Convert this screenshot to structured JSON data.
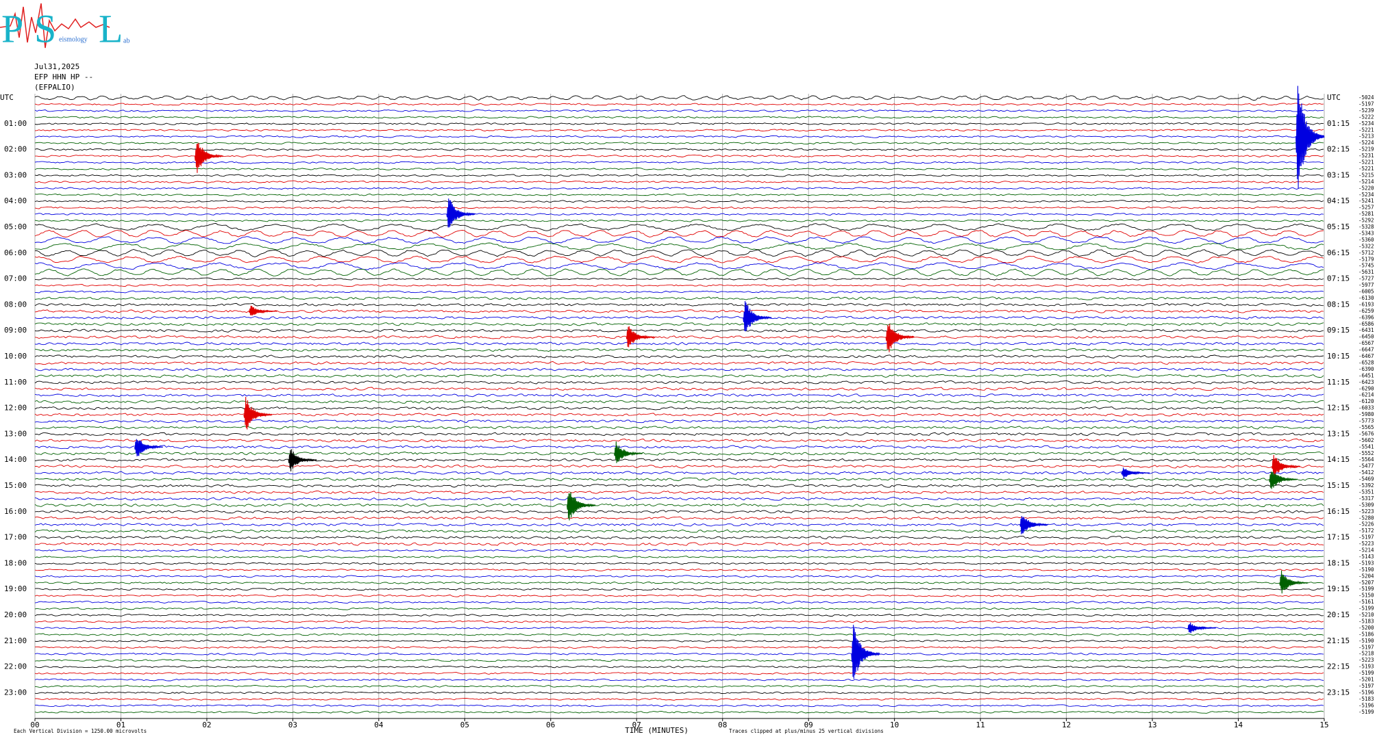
{
  "header": {
    "logo": [
      "P",
      "S",
      "eismology",
      "L",
      "ab"
    ],
    "date": "Jul31,2025",
    "station": "EFP HHN HP --",
    "site": "(EFPALIO)"
  },
  "chart_data": {
    "type": "helicorder",
    "left_labels": [
      "UTC",
      "01:00",
      "02:00",
      "03:00",
      "04:00",
      "05:00",
      "06:00",
      "07:00",
      "08:00",
      "09:00",
      "10:00",
      "11:00",
      "12:00",
      "13:00",
      "14:00",
      "15:00",
      "16:00",
      "17:00",
      "18:00",
      "19:00",
      "20:00",
      "21:00",
      "22:00",
      "23:00"
    ],
    "right_labels": [
      "UTC",
      "01:15",
      "02:15",
      "03:15",
      "04:15",
      "05:15",
      "06:15",
      "07:15",
      "08:15",
      "09:15",
      "10:15",
      "11:15",
      "12:15",
      "13:15",
      "14:15",
      "15:15",
      "16:15",
      "17:15",
      "18:15",
      "19:15",
      "20:15",
      "21:15",
      "22:15",
      "23:15"
    ],
    "trace_labels": [
      "-5024",
      "-5197",
      "-5239",
      "-5222",
      "-5234",
      "-5221",
      "-5213",
      "-5224",
      "-5219",
      "-5231",
      "-5221",
      "-5221",
      "-5215",
      "-5214",
      "-5220",
      "-5234",
      "-5241",
      "-5257",
      "-5281",
      "-5292",
      "-5328",
      "-5343",
      "-5360",
      "-5322",
      "-5712",
      "-5179",
      "-5745",
      "-5631",
      "-5727",
      "-5977",
      "-6005",
      "-6130",
      "-6193",
      "-6259",
      "-6396",
      "-6586",
      "-6431",
      "-6450",
      "-6567",
      "-6647",
      "-6467",
      "-6528",
      "-6390",
      "-6451",
      "-6423",
      "-6290",
      "-6214",
      "-6120",
      "-6033",
      "-5980",
      "-5773",
      "-5565",
      "-5676",
      "-5602",
      "-5541",
      "-5552",
      "-5564",
      "-5477",
      "-5412",
      "-5469",
      "-5392",
      "-5351",
      "-5317",
      "-5309",
      "-5223",
      "-5280",
      "-5226",
      "-5172",
      "-5197",
      "-5223",
      "-5214",
      "-5143",
      "-5193",
      "-5190",
      "-5204",
      "-5207",
      "-5199",
      "-5150",
      "-5161",
      "-5199",
      "-5210",
      "-5183",
      "-5200",
      "-5186",
      "-5190",
      "-5197",
      "-5218",
      "-5223",
      "-5193",
      "-5199",
      "-5201",
      "-5197",
      "-5196",
      "-5183",
      "-5196",
      "-5199"
    ],
    "trace_colors": [
      "#000000",
      "#e00000",
      "#0000e0",
      "#006000"
    ],
    "x_label": "TIME (MINUTES)",
    "xlim": [
      0,
      15
    ],
    "xticks": [
      {
        "value": 0,
        "label": "00"
      },
      {
        "value": 1,
        "label": "01"
      },
      {
        "value": 2,
        "label": "02"
      },
      {
        "value": 3,
        "label": "03"
      },
      {
        "value": 4,
        "label": "04"
      },
      {
        "value": 5,
        "label": "05"
      },
      {
        "value": 6,
        "label": "06"
      },
      {
        "value": 7,
        "label": "07"
      },
      {
        "value": 8,
        "label": "08"
      },
      {
        "value": 9,
        "label": "09"
      },
      10,
      11,
      12,
      13,
      14,
      15
    ],
    "grid": true,
    "footnote_left": "Each Vertical Division = 1250.00 microvolts",
    "footnote_right": "Traces clipped at plus/minus 25 vertical divisions",
    "events": [
      {
        "trace": 6,
        "minute": 14.67,
        "amplitude": 10
      },
      {
        "trace": 9,
        "minute": 1.86,
        "amplitude": 3
      },
      {
        "trace": 18,
        "minute": 4.79,
        "amplitude": 3
      },
      {
        "trace": 33,
        "minute": 2.49,
        "amplitude": 1
      },
      {
        "trace": 34,
        "minute": 8.24,
        "amplitude": 3
      },
      {
        "trace": 37,
        "minute": 6.88,
        "amplitude": 2
      },
      {
        "trace": 37,
        "minute": 9.9,
        "amplitude": 3
      },
      {
        "trace": 49,
        "minute": 2.43,
        "amplitude": 3
      },
      {
        "trace": 54,
        "minute": 1.16,
        "amplitude": 2
      },
      {
        "trace": 55,
        "minute": 6.74,
        "amplitude": 2
      },
      {
        "trace": 56,
        "minute": 2.95,
        "amplitude": 2
      },
      {
        "trace": 57,
        "minute": 14.39,
        "amplitude": 2
      },
      {
        "trace": 58,
        "minute": 12.64,
        "amplitude": 1
      },
      {
        "trace": 59,
        "minute": 14.36,
        "amplitude": 2
      },
      {
        "trace": 63,
        "minute": 6.19,
        "amplitude": 3
      },
      {
        "trace": 66,
        "minute": 11.46,
        "amplitude": 2
      },
      {
        "trace": 75,
        "minute": 14.48,
        "amplitude": 2
      },
      {
        "trace": 82,
        "minute": 13.41,
        "amplitude": 1
      },
      {
        "trace": 86,
        "minute": 9.5,
        "amplitude": 5
      }
    ]
  }
}
